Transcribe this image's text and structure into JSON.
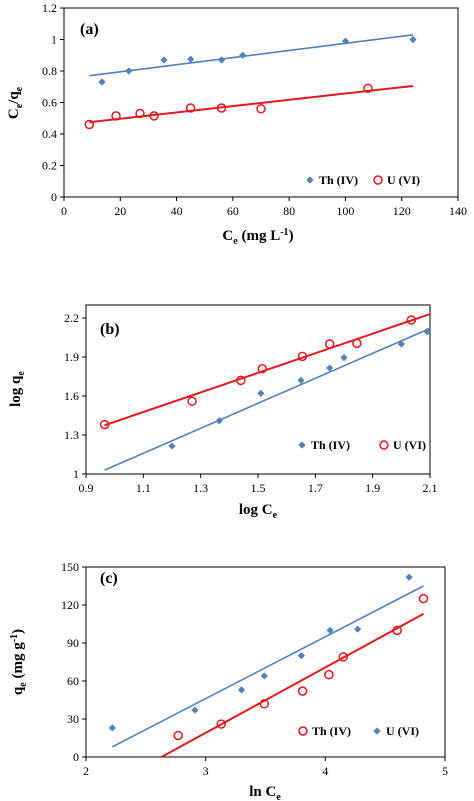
{
  "chart_data": [
    {
      "type": "scatter",
      "panel_label": "(a)",
      "xlabel": "Ce (mg L-1)",
      "ylabel": "Ce/qe",
      "xlim": [
        0,
        140
      ],
      "ylim": [
        0,
        1.2
      ],
      "x_ticks": [
        "0",
        "20",
        "40",
        "60",
        "80",
        "100",
        "120",
        "140"
      ],
      "y_ticks": [
        "0",
        "0.2",
        "0.4",
        "0.6",
        "0.8",
        "1",
        "1.2"
      ],
      "legend_position": "bottom-right",
      "series": [
        {
          "name": "Th (IV)",
          "marker": "diamond",
          "color": "#4f81bd",
          "points": [
            [
              13.5,
              0.73
            ],
            [
              23,
              0.8
            ],
            [
              35.5,
              0.87
            ],
            [
              45,
              0.875
            ],
            [
              56,
              0.87
            ],
            [
              63.5,
              0.9
            ],
            [
              100,
              0.99
            ],
            [
              124,
              1.0
            ]
          ],
          "fit": [
            [
              9,
              0.77
            ],
            [
              124,
              1.03
            ]
          ]
        },
        {
          "name": "U (VI)",
          "marker": "circle",
          "color": "#e8151b",
          "points": [
            [
              9,
              0.46
            ],
            [
              18.5,
              0.515
            ],
            [
              27,
              0.53
            ],
            [
              32,
              0.515
            ],
            [
              45,
              0.565
            ],
            [
              56,
              0.565
            ],
            [
              70,
              0.56
            ],
            [
              108,
              0.69
            ]
          ],
          "fit": [
            [
              9,
              0.475
            ],
            [
              124,
              0.705
            ]
          ]
        }
      ]
    },
    {
      "type": "scatter",
      "panel_label": "(b)",
      "xlabel": "log Ce",
      "ylabel": "log qe",
      "xlim": [
        0.9,
        2.1
      ],
      "ylim": [
        1,
        2.3
      ],
      "x_ticks": [
        "0.9",
        "1.1",
        "1.3",
        "1.5",
        "1.7",
        "1.9",
        "2.1"
      ],
      "y_ticks": [
        "1",
        "1.3",
        "1.6",
        "1.9",
        "2.2"
      ],
      "legend_position": "bottom-right",
      "series": [
        {
          "name": "Th (IV)",
          "marker": "diamond",
          "color": "#4f81bd",
          "points": [
            [
              1.2,
              1.215
            ],
            [
              1.365,
              1.41
            ],
            [
              1.51,
              1.62
            ],
            [
              1.65,
              1.72
            ],
            [
              1.75,
              1.815
            ],
            [
              1.8,
              1.895
            ],
            [
              2.0,
              2.0
            ],
            [
              2.09,
              2.095
            ]
          ],
          "fit": [
            [
              0.965,
              1.03
            ],
            [
              2.1,
              2.12
            ]
          ]
        },
        {
          "name": "U (VI)",
          "marker": "circle",
          "color": "#e8151b",
          "points": [
            [
              0.965,
              1.38
            ],
            [
              1.27,
              1.56
            ],
            [
              1.44,
              1.72
            ],
            [
              1.515,
              1.81
            ],
            [
              1.655,
              1.905
            ],
            [
              1.75,
              2.0
            ],
            [
              1.845,
              2.005
            ],
            [
              2.035,
              2.185
            ]
          ],
          "fit": [
            [
              0.965,
              1.375
            ],
            [
              2.1,
              2.23
            ]
          ]
        }
      ]
    },
    {
      "type": "scatter",
      "panel_label": "(c)",
      "xlabel": "ln Ce",
      "ylabel": "qe (mg g-1)",
      "xlim": [
        2,
        5
      ],
      "ylim": [
        0,
        150
      ],
      "x_ticks": [
        "2",
        "3",
        "4",
        "5"
      ],
      "y_ticks": [
        "0",
        "30",
        "60",
        "90",
        "120",
        "150"
      ],
      "legend_position": "bottom-right",
      "series": [
        {
          "name": "Th (IV)",
          "marker": "circle",
          "color": "#e8151b",
          "points": [
            [
              2.77,
              17
            ],
            [
              3.13,
              26
            ],
            [
              3.49,
              42
            ],
            [
              3.81,
              52
            ],
            [
              4.03,
              65
            ],
            [
              4.15,
              79
            ],
            [
              4.6,
              100
            ],
            [
              4.82,
              125
            ]
          ],
          "fit": [
            [
              2.63,
              0
            ],
            [
              4.82,
              113
            ]
          ]
        },
        {
          "name": "U (VI)",
          "marker": "diamond",
          "color": "#4f81bd",
          "points": [
            [
              2.22,
              23
            ],
            [
              2.91,
              37
            ],
            [
              3.3,
              53
            ],
            [
              3.49,
              64
            ],
            [
              3.8,
              80
            ],
            [
              4.04,
              100
            ],
            [
              4.27,
              101
            ],
            [
              4.7,
              142
            ]
          ],
          "fit": [
            [
              2.22,
              8
            ],
            [
              4.82,
              135
            ]
          ]
        }
      ]
    }
  ]
}
